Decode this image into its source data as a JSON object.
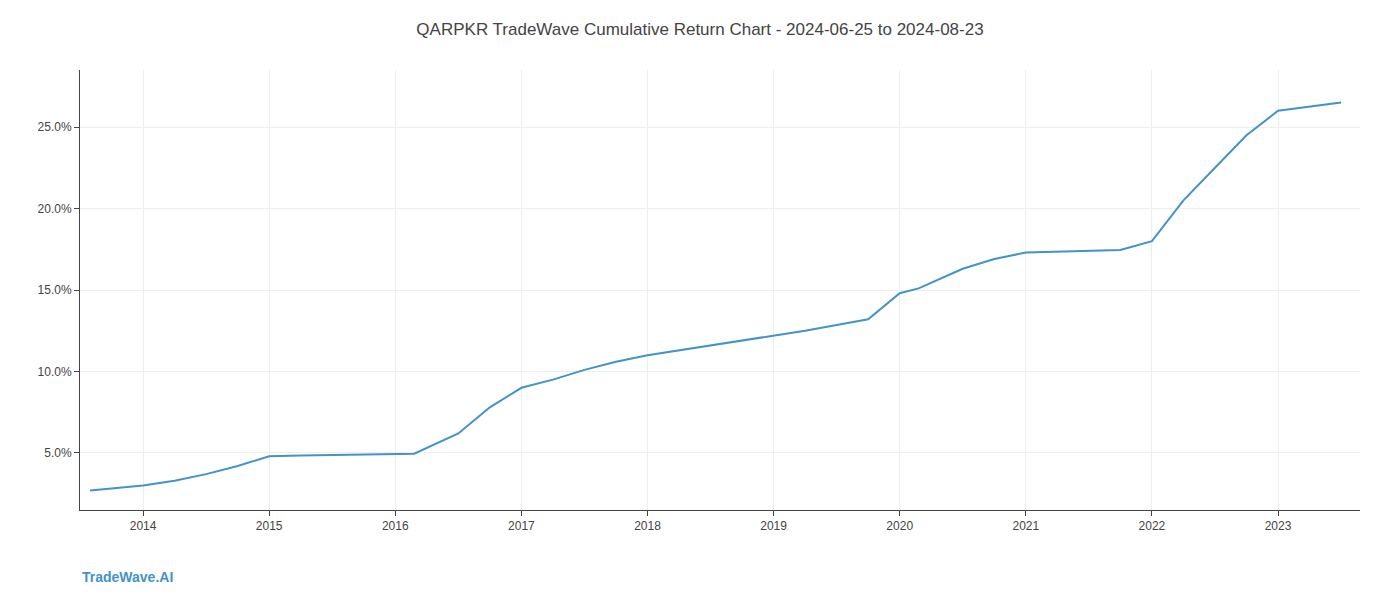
{
  "chart_data": {
    "type": "line",
    "title": "QARPKR TradeWave Cumulative Return Chart - 2024-06-25 to 2024-08-23",
    "annotations": [
      {
        "text": "TradeWave.AI"
      }
    ],
    "x": [
      2013.58,
      2014.0,
      2014.25,
      2014.5,
      2014.75,
      2015.0,
      2015.25,
      2015.5,
      2015.75,
      2016.0,
      2016.15,
      2016.5,
      2016.75,
      2017.0,
      2017.25,
      2017.5,
      2017.75,
      2018.0,
      2018.25,
      2018.5,
      2018.75,
      2019.0,
      2019.25,
      2019.5,
      2019.75,
      2020.0,
      2020.15,
      2020.5,
      2020.75,
      2021.0,
      2021.25,
      2021.5,
      2021.75,
      2022.0,
      2022.25,
      2022.5,
      2022.75,
      2023.0,
      2023.5
    ],
    "values": [
      2.7,
      3.0,
      3.3,
      3.7,
      4.2,
      4.8,
      4.85,
      4.87,
      4.88,
      4.9,
      4.95,
      6.2,
      7.8,
      9.0,
      9.5,
      10.1,
      10.6,
      11.0,
      11.3,
      11.6,
      11.9,
      12.2,
      12.5,
      12.85,
      13.2,
      14.8,
      15.1,
      16.3,
      16.9,
      17.3,
      17.35,
      17.4,
      17.45,
      18.0,
      20.5,
      22.5,
      24.5,
      26.0,
      26.5
    ],
    "color": "#4393c7",
    "xlim": [
      2013.5,
      2023.65
    ],
    "xticks": [
      2014,
      2015,
      2016,
      2017,
      2018,
      2019,
      2020,
      2021,
      2022,
      2023
    ],
    "ylim": [
      1.5,
      28.5
    ],
    "yticks": [
      {
        "value": 5.0,
        "label": "5.0%"
      },
      {
        "value": 10.0,
        "label": "10.0%"
      },
      {
        "value": 15.0,
        "label": "15.0%"
      },
      {
        "value": 20.0,
        "label": "20.0%"
      },
      {
        "value": 25.0,
        "label": "25.0%"
      }
    ],
    "grid": true
  }
}
